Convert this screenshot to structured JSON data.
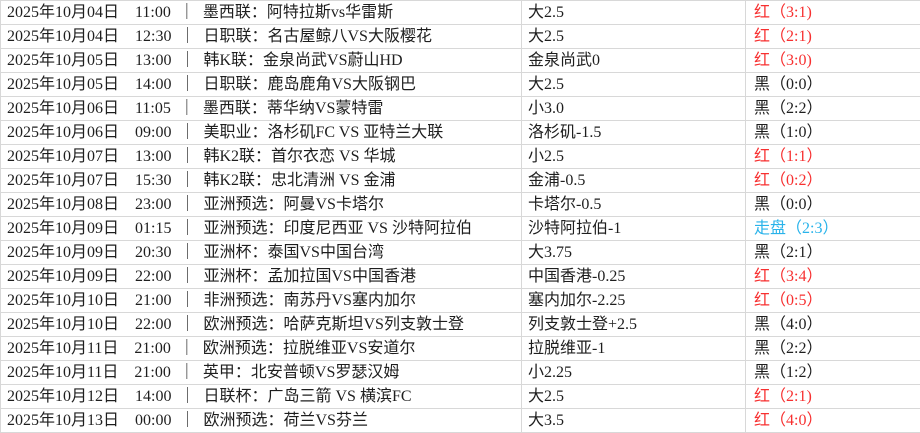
{
  "colors": {
    "win": "#f73030",
    "loss": "#1e1e1e",
    "push": "#29b3ea",
    "border": "#d8d8d8",
    "text": "#1e1e1e",
    "background": "#ffffff"
  },
  "table": {
    "separator": "｜",
    "columns": [
      "match_info",
      "handicap",
      "result"
    ],
    "rows": [
      {
        "date": "2025年10月04日",
        "time": "11:00",
        "match": "墨西联：阿特拉斯vs华雷斯",
        "handicap": "大2.5",
        "result": "红（3:1)",
        "result_type": "win"
      },
      {
        "date": "2025年10月04日",
        "time": "12:30",
        "match": "日职联：名古屋鲸八VS大阪樱花",
        "handicap": "大2.5",
        "result": "红（2:1)",
        "result_type": "win"
      },
      {
        "date": "2025年10月05日",
        "time": "13:00",
        "match": "韩K联：金泉尚武VS蔚山HD",
        "handicap": "金泉尚武0",
        "result": "红（3:0)",
        "result_type": "win"
      },
      {
        "date": "2025年10月05日",
        "time": "14:00",
        "match": "日职联：鹿岛鹿角VS大阪钢巴",
        "handicap": "大2.5",
        "result": "黑（0:0）",
        "result_type": "loss"
      },
      {
        "date": "2025年10月06日",
        "time": "11:05",
        "match": "墨西联：蒂华纳VS蒙特雷",
        "handicap": "小3.0",
        "result": "黑（2:2）",
        "result_type": "loss"
      },
      {
        "date": "2025年10月06日",
        "time": "09:00",
        "match": "美职业：洛杉矶FC VS 亚特兰大联",
        "handicap": "洛杉矶-1.5",
        "result": "黑（1:0）",
        "result_type": "loss"
      },
      {
        "date": "2025年10月07日",
        "time": "13:00",
        "match": "韩K2联：首尔衣恋 VS 华城",
        "handicap": "小2.5",
        "result": "红（1:1）",
        "result_type": "win"
      },
      {
        "date": "2025年10月07日",
        "time": "15:30",
        "match": "韩K2联：忠北清洲 VS 金浦",
        "handicap": "金浦-0.5",
        "result": "红（0:2）",
        "result_type": "win"
      },
      {
        "date": "2025年10月08日",
        "time": "23:00",
        "match": "亚洲预选：阿曼VS卡塔尔",
        "handicap": "卡塔尔-0.5",
        "result": "黑（0:0）",
        "result_type": "loss"
      },
      {
        "date": "2025年10月09日",
        "time": "01:15",
        "match": "亚洲预选：印度尼西亚 VS 沙特阿拉伯",
        "handicap": "沙特阿拉伯-1",
        "result": "走盘（2:3）",
        "result_type": "push"
      },
      {
        "date": "2025年10月09日",
        "time": "20:30",
        "match": "亚洲杯：泰国VS中国台湾",
        "handicap": "大3.75",
        "result": "黑（2:1）",
        "result_type": "loss"
      },
      {
        "date": "2025年10月09日",
        "time": "22:00",
        "match": "亚洲杯：孟加拉国VS中国香港",
        "handicap": "中国香港-0.25",
        "result": "红（3:4）",
        "result_type": "win"
      },
      {
        "date": "2025年10月10日",
        "time": "21:00",
        "match": "非洲预选：南苏丹VS塞内加尔",
        "handicap": "塞内加尔-2.25",
        "result": "红（0:5）",
        "result_type": "win"
      },
      {
        "date": "2025年10月10日",
        "time": "22:00",
        "match": "欧洲预选：哈萨克斯坦VS列支敦士登",
        "handicap": "列支敦士登+2.5",
        "result": "黑（4:0）",
        "result_type": "loss"
      },
      {
        "date": "2025年10月11日",
        "time": "21:00",
        "match": "欧洲预选：拉脱维亚VS安道尔",
        "handicap": "拉脱维亚-1",
        "result": "黑（2:2）",
        "result_type": "loss"
      },
      {
        "date": "2025年10月11日",
        "time": "21:00",
        "match": "英甲：北安普顿VS罗瑟汉姆",
        "handicap": "小2.25",
        "result": "黑（1:2）",
        "result_type": "loss"
      },
      {
        "date": "2025年10月12日",
        "time": "14:00",
        "match": "日联杯：广岛三箭 VS 横滨FC",
        "handicap": "大2.5",
        "result": "红（2:1)",
        "result_type": "win"
      },
      {
        "date": "2025年10月13日",
        "time": "00:00",
        "match": "欧洲预选：荷兰VS芬兰",
        "handicap": "大3.5",
        "result": "红（4:0）",
        "result_type": "win"
      }
    ]
  }
}
